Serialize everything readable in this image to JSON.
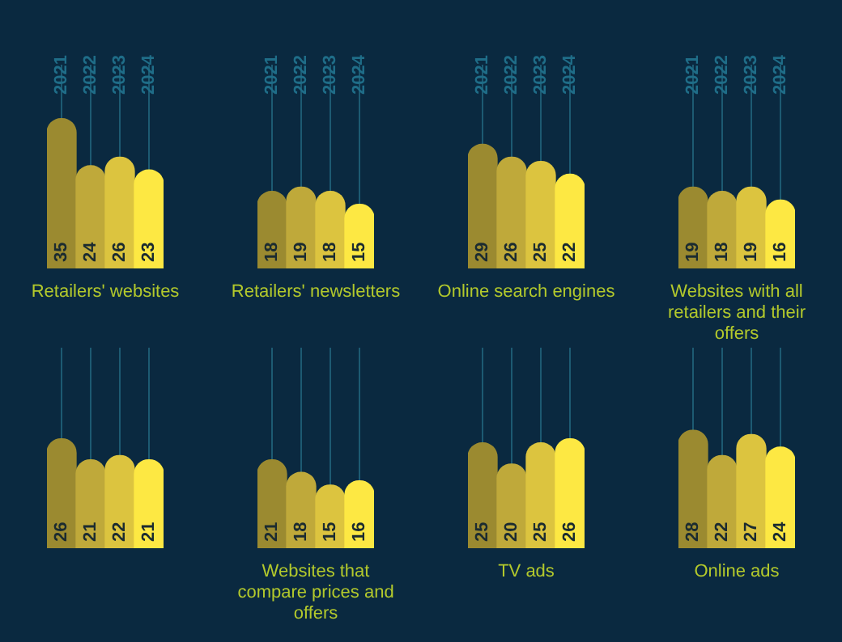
{
  "chart_data": [
    {
      "type": "bar",
      "title": "Retailers' websites",
      "categories": [
        "2021",
        "2022",
        "2023",
        "2024"
      ],
      "values": [
        35,
        24,
        26,
        23
      ],
      "colors": [
        "#9b8a30",
        "#bfa93a",
        "#dcc43f",
        "#fde843"
      ],
      "data_labels": true,
      "grid": "x",
      "tick_labels": "x"
    },
    {
      "type": "bar",
      "title": "Retailers' newsletters",
      "categories": [
        "2021",
        "2022",
        "2023",
        "2024"
      ],
      "values": [
        18,
        19,
        18,
        15
      ],
      "colors": [
        "#9b8a30",
        "#bfa93a",
        "#dcc43f",
        "#fde843"
      ],
      "data_labels": true,
      "grid": "x",
      "tick_labels": "x"
    },
    {
      "type": "bar",
      "title": "Online search engines",
      "categories": [
        "2021",
        "2022",
        "2023",
        "2024"
      ],
      "values": [
        29,
        26,
        25,
        22
      ],
      "colors": [
        "#9b8a30",
        "#bfa93a",
        "#dcc43f",
        "#fde843"
      ],
      "data_labels": true,
      "grid": "x",
      "tick_labels": "x"
    },
    {
      "type": "bar",
      "title": "Websites with all retailers and their offers",
      "categories": [
        "2021",
        "2022",
        "2023",
        "2024"
      ],
      "values": [
        19,
        18,
        19,
        16
      ],
      "colors": [
        "#9b8a30",
        "#bfa93a",
        "#dcc43f",
        "#fde843"
      ],
      "data_labels": true,
      "grid": "x",
      "tick_labels": "x"
    },
    {
      "type": "bar",
      "categories": [
        "2021",
        "2022",
        "2023",
        "2024"
      ],
      "values": [
        26,
        21,
        22,
        21
      ],
      "colors": [
        "#9b8a30",
        "#bfa93a",
        "#dcc43f",
        "#fde843"
      ],
      "data_labels": true,
      "grid": "x",
      "tick_labels": false
    },
    {
      "type": "bar",
      "title": "Websites that compare prices and offers",
      "categories": [
        "2021",
        "2022",
        "2023",
        "2024"
      ],
      "values": [
        21,
        18,
        15,
        16
      ],
      "colors": [
        "#9b8a30",
        "#bfa93a",
        "#dcc43f",
        "#fde843"
      ],
      "data_labels": true,
      "grid": "x",
      "tick_labels": false
    },
    {
      "type": "bar",
      "title": "TV ads",
      "categories": [
        "2021",
        "2022",
        "2023",
        "2024"
      ],
      "values": [
        25,
        20,
        25,
        26
      ],
      "colors": [
        "#9b8a30",
        "#bfa93a",
        "#dcc43f",
        "#fde843"
      ],
      "data_labels": true,
      "grid": "x",
      "tick_labels": false
    },
    {
      "type": "bar",
      "title": "Online ads",
      "categories": [
        "2021",
        "2022",
        "2023",
        "2024"
      ],
      "values": [
        28,
        22,
        27,
        24
      ],
      "colors": [
        "#9b8a30",
        "#bfa93a",
        "#dcc43f",
        "#fde843"
      ],
      "data_labels": true,
      "grid": "x",
      "tick_labels": false
    }
  ]
}
